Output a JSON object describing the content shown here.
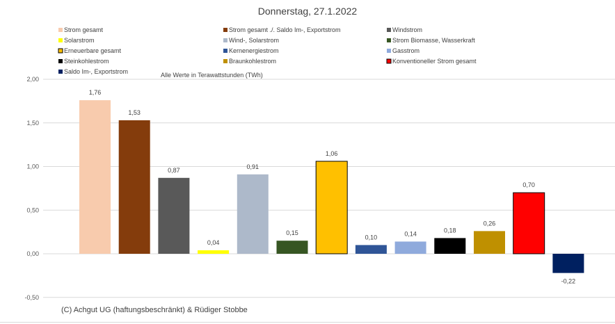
{
  "chart_data": {
    "type": "bar",
    "title": "Donnerstag, 27.1.2022",
    "note": "Alle Werte in Terawattstunden (TWh)",
    "copyright": "(C) Achgut UG (haftungsbeschränkt) & Rüdiger Stobbe",
    "xlabel": "",
    "ylabel": "",
    "ylim": [
      -0.5,
      2.0
    ],
    "yticks": [
      2.0,
      1.5,
      1.0,
      0.5,
      0.0,
      -0.5
    ],
    "ytick_labels": [
      "2,00",
      "1,50",
      "1,00",
      "0,50",
      "0,00",
      "-0,50"
    ],
    "grid": true,
    "legend_position": "top",
    "series": [
      {
        "name": "Strom gesamt",
        "value": 1.76,
        "label": "1,76",
        "color": "#F8CBAD"
      },
      {
        "name": "Strom gesamt ./. Saldo Im-, Exportstrom",
        "value": 1.53,
        "label": "1,53",
        "color": "#843C0C"
      },
      {
        "name": "Windstrom",
        "value": 0.87,
        "label": "0,87",
        "color": "#595959"
      },
      {
        "name": "Solarstrom",
        "value": 0.04,
        "label": "0,04",
        "color": "#FFFF00"
      },
      {
        "name": "Wind-, Solarstrom",
        "value": 0.91,
        "label": "0,91",
        "color": "#ADB9CA"
      },
      {
        "name": "Strom Biomasse, Wasserkraft",
        "value": 0.15,
        "label": "0,15",
        "color": "#375623"
      },
      {
        "name": "Erneuerbare gesamt",
        "value": 1.06,
        "label": "1,06",
        "color": "#FFC000",
        "outline": "#000000"
      },
      {
        "name": "Kernenergiestrom",
        "value": 0.1,
        "label": "0,10",
        "color": "#2F5597"
      },
      {
        "name": "Gasstrom",
        "value": 0.14,
        "label": "0,14",
        "color": "#8FAADC"
      },
      {
        "name": "Steinkohlestrom",
        "value": 0.18,
        "label": "0,18",
        "color": "#000000"
      },
      {
        "name": "Braunkohlestrom",
        "value": 0.26,
        "label": "0,26",
        "color": "#BF9000"
      },
      {
        "name": "Konventioneller Strom gesamt",
        "value": 0.7,
        "label": "0,70",
        "color": "#FF0000",
        "outline": "#000000"
      },
      {
        "name": "Saldo Im-, Exportstrom",
        "value": -0.22,
        "label": "-0,22",
        "color": "#002060"
      }
    ]
  }
}
